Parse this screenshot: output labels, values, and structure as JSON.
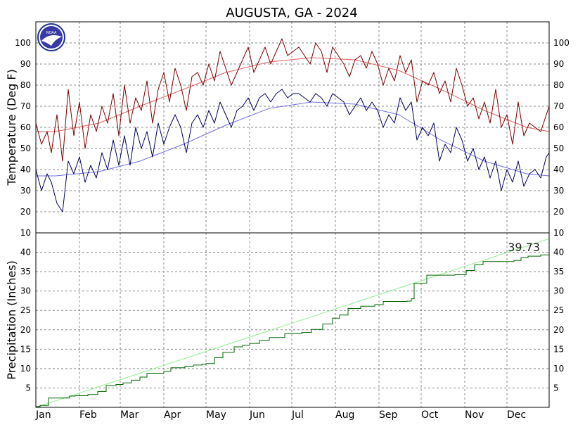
{
  "chart_data": {
    "type": "line",
    "title": "AUGUSTA, GA - 2024",
    "logo_text": "NOAA",
    "months": [
      "Jan",
      "Feb",
      "Mar",
      "Apr",
      "May",
      "Jun",
      "Jul",
      "Aug",
      "Sep",
      "Oct",
      "Nov",
      "Dec"
    ],
    "x_domain_days": [
      1,
      366
    ],
    "grid": true,
    "temperature": {
      "ylabel": "Temperature (Deg F)",
      "ylim": [
        10,
        110
      ],
      "yticks": [
        10,
        20,
        30,
        40,
        50,
        60,
        70,
        80,
        90,
        100
      ],
      "colors": {
        "observed_high": "#7a0000",
        "observed_low": "#00005a",
        "normal_high": "#e06060",
        "normal_low": "#7070e0"
      },
      "normal_high": {
        "x": [
          1,
          15,
          46,
          75,
          106,
          136,
          167,
          197,
          228,
          259,
          289,
          320,
          350,
          366
        ],
        "y": [
          58,
          58,
          62,
          70,
          78,
          86,
          91,
          93,
          92,
          87,
          78,
          68,
          60,
          58
        ]
      },
      "normal_low": {
        "x": [
          1,
          15,
          46,
          75,
          106,
          136,
          167,
          197,
          228,
          259,
          289,
          320,
          350,
          366
        ],
        "y": [
          37,
          37,
          39,
          44,
          52,
          61,
          69,
          72,
          71,
          66,
          54,
          44,
          38,
          37
        ]
      },
      "observed_high": {
        "x": [
          1,
          5,
          9,
          12,
          16,
          20,
          24,
          28,
          32,
          36,
          40,
          44,
          48,
          52,
          56,
          60,
          64,
          68,
          72,
          76,
          80,
          84,
          88,
          92,
          96,
          100,
          104,
          108,
          112,
          116,
          120,
          124,
          128,
          132,
          136,
          140,
          144,
          148,
          152,
          156,
          160,
          164,
          168,
          172,
          176,
          180,
          184,
          188,
          192,
          196,
          200,
          204,
          208,
          212,
          216,
          220,
          224,
          228,
          232,
          236,
          240,
          244,
          248,
          252,
          256,
          260,
          264,
          268,
          272,
          276,
          280,
          284,
          288,
          292,
          296,
          300,
          304,
          308,
          312,
          316,
          320,
          324,
          328,
          332,
          336,
          340,
          344,
          348,
          352,
          356,
          360,
          364,
          366
        ],
        "y": [
          62,
          52,
          58,
          48,
          66,
          44,
          78,
          56,
          72,
          50,
          66,
          58,
          70,
          62,
          76,
          56,
          80,
          62,
          74,
          68,
          82,
          62,
          78,
          86,
          72,
          88,
          80,
          68,
          84,
          86,
          80,
          90,
          82,
          96,
          88,
          80,
          86,
          92,
          98,
          86,
          92,
          98,
          90,
          96,
          102,
          94,
          96,
          98,
          94,
          90,
          100,
          96,
          86,
          98,
          94,
          90,
          84,
          92,
          94,
          88,
          96,
          90,
          80,
          88,
          82,
          94,
          86,
          92,
          72,
          82,
          80,
          86,
          76,
          82,
          72,
          88,
          80,
          70,
          74,
          64,
          72,
          62,
          78,
          60,
          66,
          52,
          72,
          56,
          62,
          60,
          58,
          66,
          70
        ]
      },
      "observed_low": {
        "x": [
          1,
          5,
          9,
          12,
          16,
          20,
          24,
          28,
          32,
          36,
          40,
          44,
          48,
          52,
          56,
          60,
          64,
          68,
          72,
          76,
          80,
          84,
          88,
          92,
          96,
          100,
          104,
          108,
          112,
          116,
          120,
          124,
          128,
          132,
          136,
          140,
          144,
          148,
          152,
          156,
          160,
          164,
          168,
          172,
          176,
          180,
          184,
          188,
          192,
          196,
          200,
          204,
          208,
          212,
          216,
          220,
          224,
          228,
          232,
          236,
          240,
          244,
          248,
          252,
          256,
          260,
          264,
          268,
          272,
          276,
          280,
          284,
          288,
          292,
          296,
          300,
          304,
          308,
          312,
          316,
          320,
          324,
          328,
          332,
          336,
          340,
          344,
          348,
          352,
          356,
          360,
          364,
          366
        ],
        "y": [
          40,
          30,
          38,
          34,
          24,
          20,
          44,
          38,
          46,
          34,
          42,
          36,
          48,
          40,
          54,
          42,
          56,
          42,
          60,
          50,
          58,
          46,
          62,
          52,
          60,
          66,
          60,
          48,
          62,
          66,
          60,
          68,
          62,
          72,
          66,
          60,
          68,
          70,
          74,
          68,
          74,
          76,
          72,
          76,
          78,
          74,
          76,
          76,
          74,
          72,
          76,
          74,
          70,
          76,
          74,
          72,
          66,
          70,
          74,
          68,
          72,
          68,
          60,
          66,
          62,
          74,
          68,
          72,
          54,
          60,
          56,
          62,
          44,
          52,
          48,
          60,
          54,
          44,
          50,
          40,
          46,
          36,
          44,
          30,
          40,
          34,
          44,
          32,
          38,
          40,
          36,
          46,
          48
        ]
      }
    },
    "precipitation": {
      "ylabel": "Precipitation (Inches)",
      "ylim": [
        0,
        45
      ],
      "yticks": [
        5,
        10,
        15,
        20,
        25,
        30,
        35,
        40
      ],
      "total_label": "39.73",
      "colors": {
        "observed": "#006400",
        "normal": "#90ee90"
      },
      "normal": {
        "x": [
          1,
          366
        ],
        "y": [
          0,
          43.5
        ]
      },
      "observed": {
        "x": [
          1,
          4,
          10,
          25,
          29,
          38,
          45,
          51,
          58,
          63,
          69,
          75,
          80,
          92,
          97,
          107,
          113,
          119,
          122,
          128,
          134,
          142,
          148,
          153,
          160,
          167,
          178,
          190,
          197,
          205,
          212,
          217,
          223,
          232,
          242,
          248,
          265,
          268,
          270,
          279,
          299,
          307,
          313,
          319,
          341,
          346,
          351,
          360,
          366
        ],
        "y": [
          0.2,
          0.5,
          2.4,
          2.9,
          3.0,
          3.3,
          4.1,
          5.6,
          5.9,
          6.3,
          7.0,
          7.8,
          8.8,
          9.3,
          10.2,
          10.6,
          10.9,
          11.1,
          11.3,
          12.8,
          14.2,
          15.6,
          16.0,
          16.5,
          17.3,
          18.0,
          19.0,
          19.3,
          20.1,
          21.5,
          23.0,
          23.8,
          25.5,
          26.1,
          26.5,
          27.3,
          27.4,
          28.0,
          32.0,
          34.1,
          34.2,
          35.3,
          36.8,
          37.6,
          37.9,
          38.6,
          39.0,
          39.3,
          39.73
        ]
      }
    }
  }
}
